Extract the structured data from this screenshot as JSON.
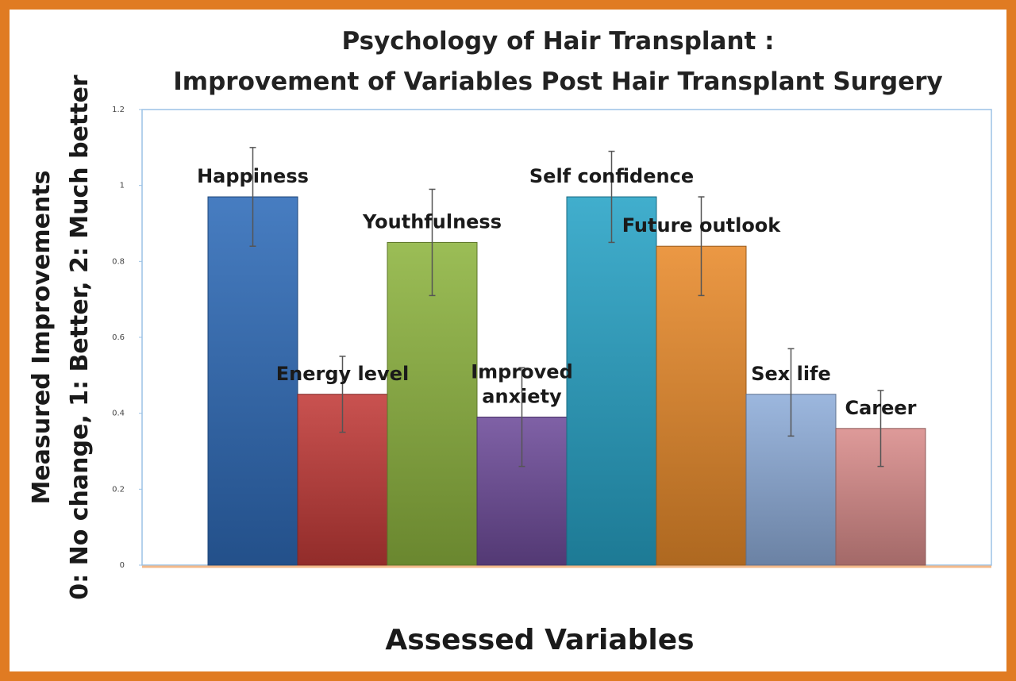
{
  "chart_data": {
    "type": "bar",
    "title": [
      "Psychology of Hair Transplant :",
      "Improvement of Variables Post Hair Transplant Surgery"
    ],
    "xlabel": "Assessed Variables",
    "ylabel": [
      "Measured Improvements",
      "0: No change, 1: Better, 2: Much better"
    ],
    "ylim": [
      0,
      1.2
    ],
    "yticks": [
      0,
      0.2,
      0.4,
      0.6,
      0.8,
      1,
      1.2
    ],
    "ytick_labels": [
      "0",
      "0.2",
      "0.4",
      "0.6",
      "0.8",
      "1",
      "1.2"
    ],
    "grid": false,
    "legend": "none",
    "categories": [
      "Happiness",
      "Energy level",
      "Youthfulness",
      "Improved anxiety",
      "Self confidence",
      "Future outlook",
      "Sex life",
      "Career"
    ],
    "label_lines": [
      [
        "Happiness"
      ],
      [
        "Energy level"
      ],
      [
        "Youthfulness"
      ],
      [
        "Improved",
        "anxiety"
      ],
      [
        "Self confidence"
      ],
      [
        "Future outlook"
      ],
      [
        "Sex life"
      ],
      [
        "Career"
      ]
    ],
    "values": [
      0.97,
      0.45,
      0.85,
      0.39,
      0.97,
      0.84,
      0.45,
      0.36
    ],
    "error_low": [
      0.84,
      0.35,
      0.71,
      0.26,
      0.85,
      0.71,
      0.34,
      0.26
    ],
    "error_high": [
      1.1,
      0.55,
      0.99,
      0.52,
      1.09,
      0.97,
      0.57,
      0.46
    ],
    "colors": [
      "#2E6BB8",
      "#C23A38",
      "#8DB43F",
      "#6E4C9A",
      "#27A3C6",
      "#E88A2B",
      "#8FADDA",
      "#D98C8B"
    ],
    "frame_color": "#E07B22"
  }
}
